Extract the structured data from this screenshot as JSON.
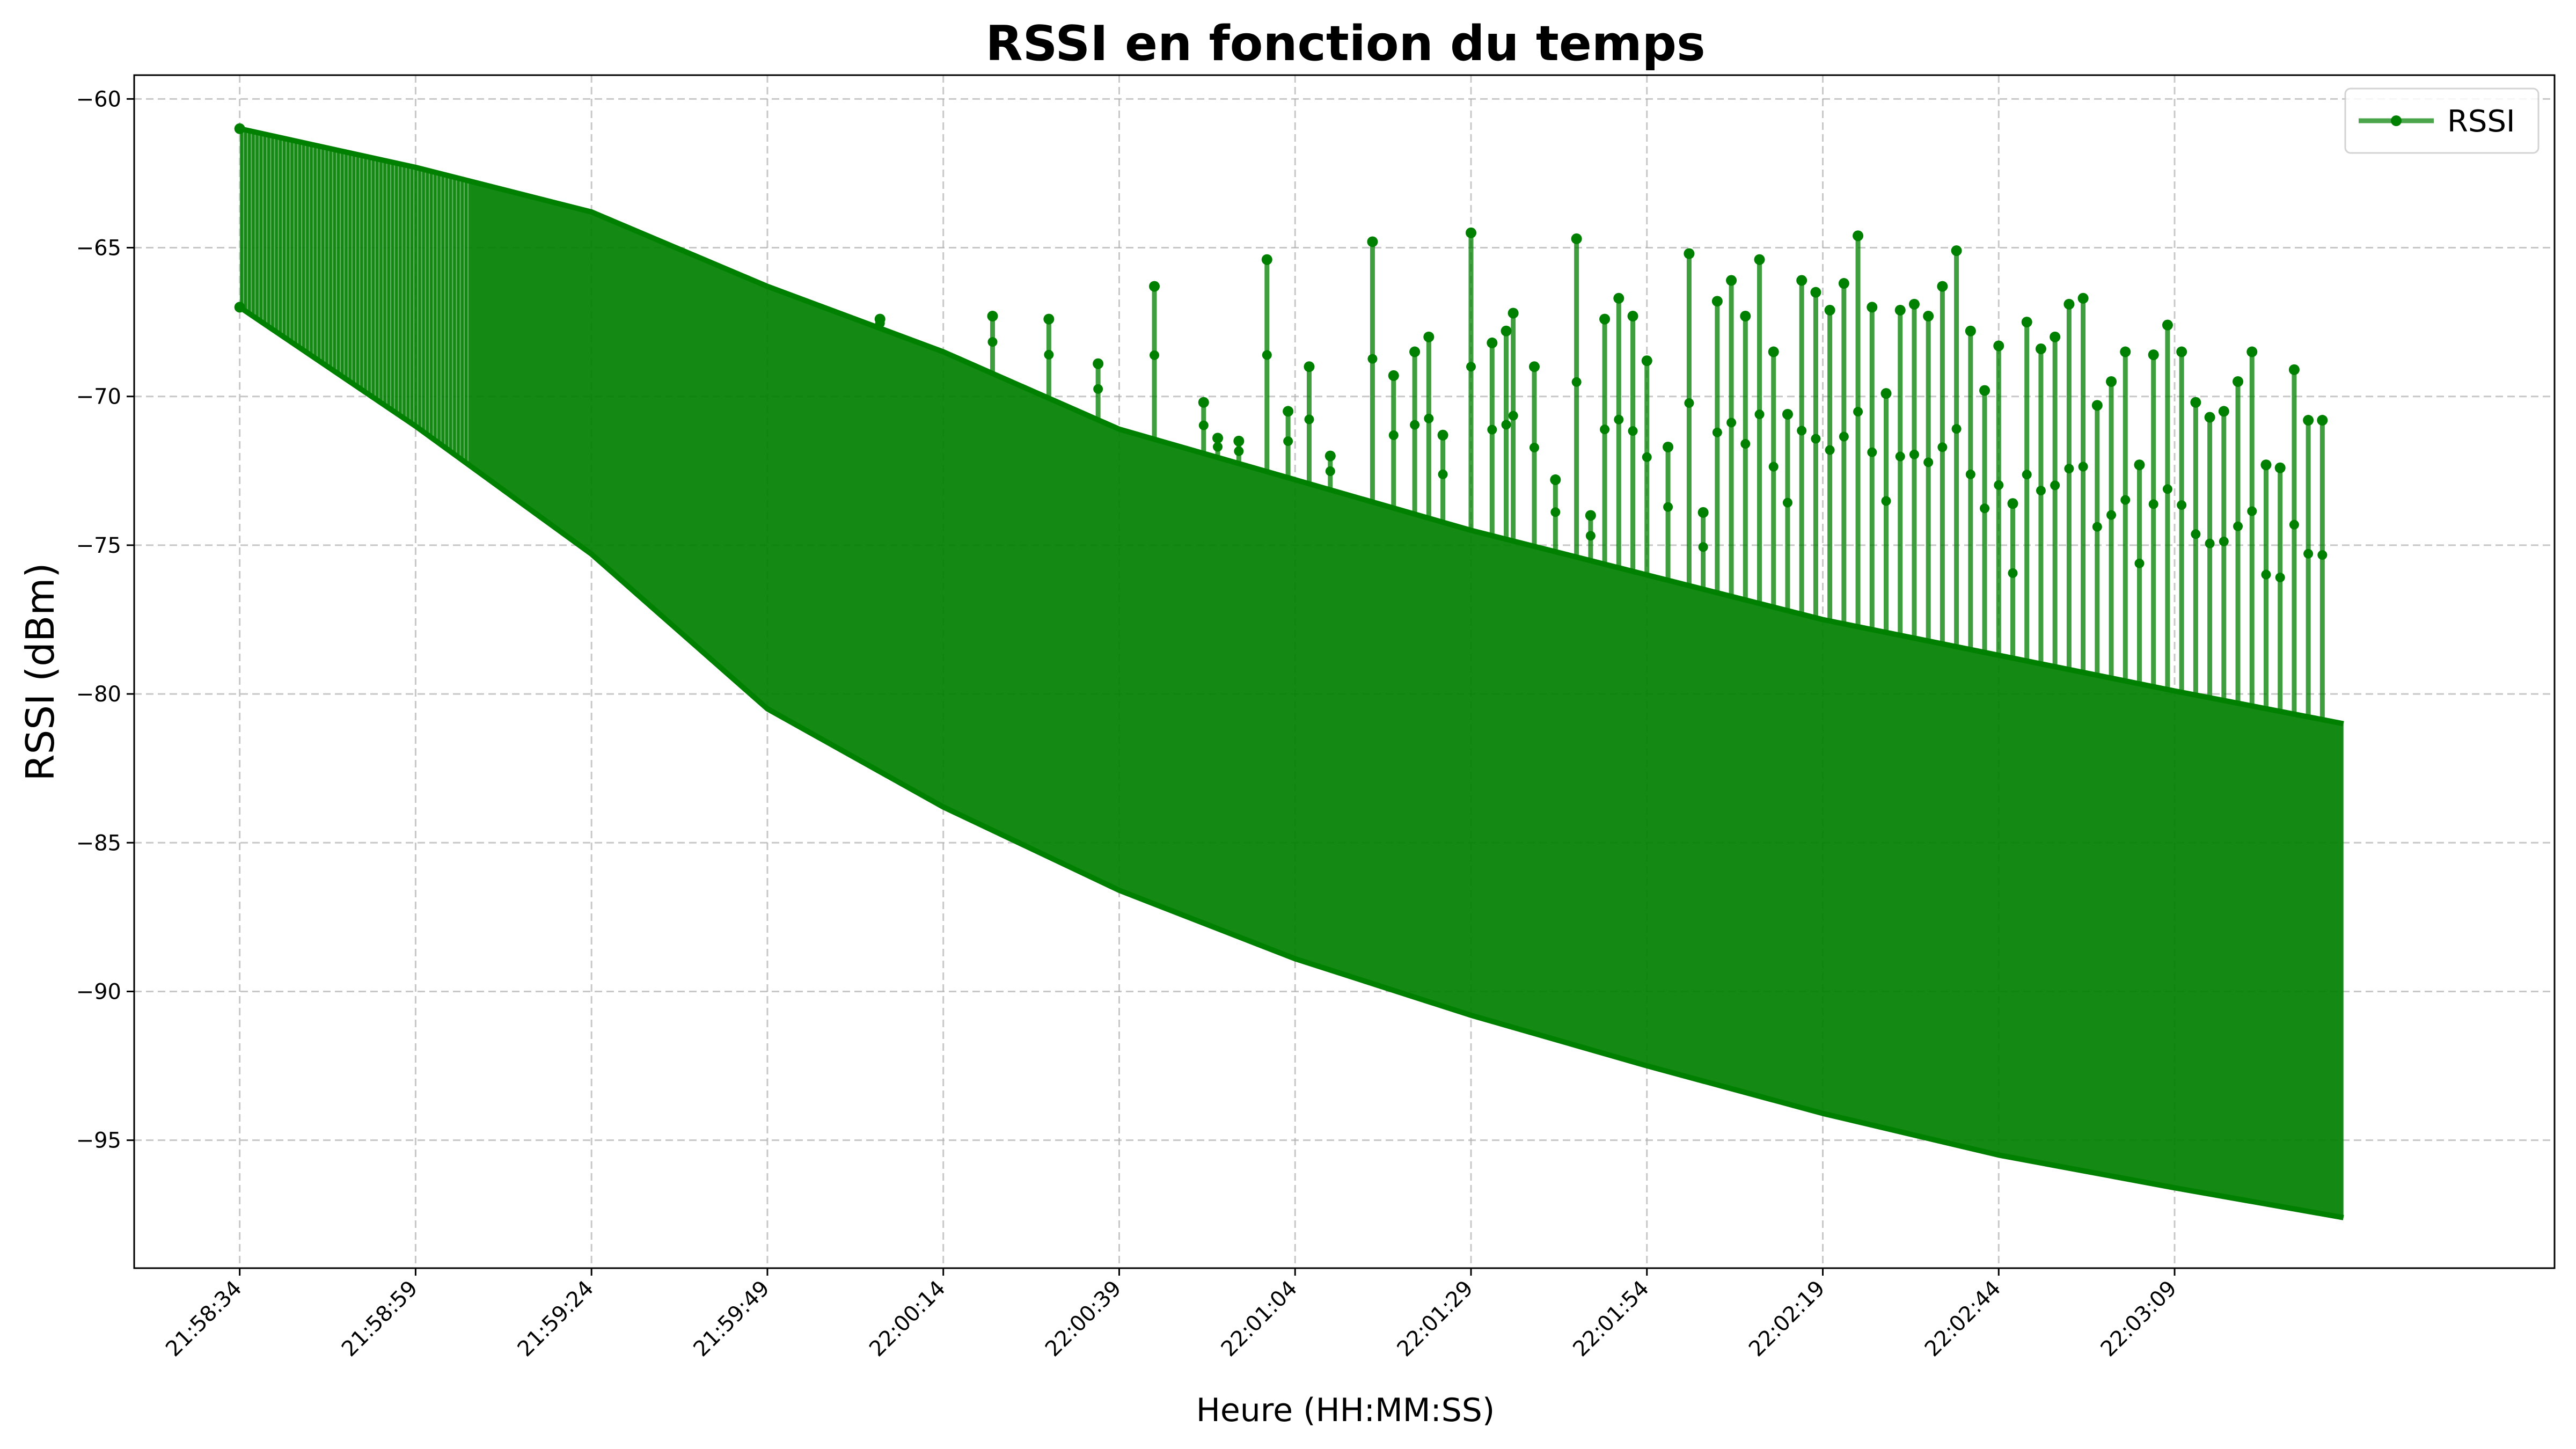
{
  "chart_data": {
    "type": "line",
    "title": "RSSI en fonction du temps",
    "xlabel": "Heure (HH:MM:SS)",
    "ylabel": "RSSI (dBm)",
    "x_ticks": [
      "21:58:34",
      "21:58:59",
      "21:59:24",
      "21:59:49",
      "22:00:14",
      "22:00:39",
      "22:01:04",
      "22:01:29",
      "22:01:54",
      "22:02:19",
      "22:02:44",
      "22:03:09"
    ],
    "x_range": [
      "21:58:19",
      "22:04:03"
    ],
    "y_ticks": [
      -60,
      -65,
      -70,
      -75,
      -80,
      -85,
      -90,
      -95
    ],
    "ylim": [
      -99.3,
      -59.2
    ],
    "grid": true,
    "legend_position": "top-right",
    "series": [
      {
        "name": "RSSI",
        "color": "#008000",
        "marker": "circle",
        "upper_envelope": [
          {
            "t": "21:58:34",
            "y": -61.0
          },
          {
            "t": "21:58:59",
            "y": -62.3
          },
          {
            "t": "21:59:24",
            "y": -63.8
          },
          {
            "t": "21:59:49",
            "y": -66.3
          },
          {
            "t": "22:00:14",
            "y": -68.5
          },
          {
            "t": "22:00:39",
            "y": -71.1
          },
          {
            "t": "22:01:04",
            "y": -72.8
          },
          {
            "t": "22:01:29",
            "y": -74.5
          },
          {
            "t": "22:01:54",
            "y": -76.0
          },
          {
            "t": "22:02:19",
            "y": -77.5
          },
          {
            "t": "22:02:44",
            "y": -78.7
          },
          {
            "t": "22:03:09",
            "y": -79.9
          },
          {
            "t": "22:03:33",
            "y": -81.0
          }
        ],
        "lower_envelope": [
          {
            "t": "21:58:34",
            "y": -67.0
          },
          {
            "t": "21:58:59",
            "y": -71.0
          },
          {
            "t": "21:59:24",
            "y": -75.3
          },
          {
            "t": "21:59:49",
            "y": -80.5
          },
          {
            "t": "22:00:14",
            "y": -83.8
          },
          {
            "t": "22:00:39",
            "y": -86.6
          },
          {
            "t": "22:01:04",
            "y": -88.9
          },
          {
            "t": "22:01:29",
            "y": -90.8
          },
          {
            "t": "22:01:54",
            "y": -92.5
          },
          {
            "t": "22:02:19",
            "y": -94.1
          },
          {
            "t": "22:02:44",
            "y": -95.5
          },
          {
            "t": "22:03:09",
            "y": -96.6
          },
          {
            "t": "22:03:33",
            "y": -97.6
          }
        ],
        "spikes": [
          {
            "t": "22:00:05",
            "y": -67.4
          },
          {
            "t": "22:00:21",
            "y": -67.3
          },
          {
            "t": "22:00:29",
            "y": -67.4
          },
          {
            "t": "22:00:36",
            "y": -68.9
          },
          {
            "t": "22:00:44",
            "y": -66.3
          },
          {
            "t": "22:00:51",
            "y": -70.2
          },
          {
            "t": "22:00:53",
            "y": -71.4
          },
          {
            "t": "22:00:56",
            "y": -71.5
          },
          {
            "t": "22:01:00",
            "y": -65.4
          },
          {
            "t": "22:01:03",
            "y": -70.5
          },
          {
            "t": "22:01:06",
            "y": -69.0
          },
          {
            "t": "22:01:09",
            "y": -72.0
          },
          {
            "t": "22:01:15",
            "y": -64.8
          },
          {
            "t": "22:01:18",
            "y": -69.3
          },
          {
            "t": "22:01:21",
            "y": -68.5
          },
          {
            "t": "22:01:23",
            "y": -68.0
          },
          {
            "t": "22:01:25",
            "y": -71.3
          },
          {
            "t": "22:01:29",
            "y": -64.5
          },
          {
            "t": "22:01:32",
            "y": -68.2
          },
          {
            "t": "22:01:34",
            "y": -67.8
          },
          {
            "t": "22:01:35",
            "y": -67.2
          },
          {
            "t": "22:01:38",
            "y": -69.0
          },
          {
            "t": "22:01:41",
            "y": -72.8
          },
          {
            "t": "22:01:44",
            "y": -64.7
          },
          {
            "t": "22:01:46",
            "y": -74.0
          },
          {
            "t": "22:01:48",
            "y": -67.4
          },
          {
            "t": "22:01:50",
            "y": -66.7
          },
          {
            "t": "22:01:52",
            "y": -67.3
          },
          {
            "t": "22:01:54",
            "y": -68.8
          },
          {
            "t": "22:01:57",
            "y": -71.7
          },
          {
            "t": "22:02:00",
            "y": -65.2
          },
          {
            "t": "22:02:02",
            "y": -73.9
          },
          {
            "t": "22:02:04",
            "y": -66.8
          },
          {
            "t": "22:02:06",
            "y": -66.1
          },
          {
            "t": "22:02:08",
            "y": -67.3
          },
          {
            "t": "22:02:10",
            "y": -65.4
          },
          {
            "t": "22:02:12",
            "y": -68.5
          },
          {
            "t": "22:02:14",
            "y": -70.6
          },
          {
            "t": "22:02:16",
            "y": -66.1
          },
          {
            "t": "22:02:18",
            "y": -66.5
          },
          {
            "t": "22:02:20",
            "y": -67.1
          },
          {
            "t": "22:02:22",
            "y": -66.2
          },
          {
            "t": "22:02:24",
            "y": -64.6
          },
          {
            "t": "22:02:26",
            "y": -67.0
          },
          {
            "t": "22:02:28",
            "y": -69.9
          },
          {
            "t": "22:02:30",
            "y": -67.1
          },
          {
            "t": "22:02:32",
            "y": -66.9
          },
          {
            "t": "22:02:34",
            "y": -67.3
          },
          {
            "t": "22:02:36",
            "y": -66.3
          },
          {
            "t": "22:02:38",
            "y": -65.1
          },
          {
            "t": "22:02:40",
            "y": -67.8
          },
          {
            "t": "22:02:42",
            "y": -69.8
          },
          {
            "t": "22:02:44",
            "y": -68.3
          },
          {
            "t": "22:02:46",
            "y": -73.6
          },
          {
            "t": "22:02:48",
            "y": -67.5
          },
          {
            "t": "22:02:50",
            "y": -68.4
          },
          {
            "t": "22:02:52",
            "y": -68.0
          },
          {
            "t": "22:02:54",
            "y": -66.9
          },
          {
            "t": "22:02:56",
            "y": -66.7
          },
          {
            "t": "22:02:58",
            "y": -70.3
          },
          {
            "t": "22:03:00",
            "y": -69.5
          },
          {
            "t": "22:03:02",
            "y": -68.5
          },
          {
            "t": "22:03:04",
            "y": -72.3
          },
          {
            "t": "22:03:06",
            "y": -68.6
          },
          {
            "t": "22:03:08",
            "y": -67.6
          },
          {
            "t": "22:03:10",
            "y": -68.5
          },
          {
            "t": "22:03:12",
            "y": -70.2
          },
          {
            "t": "22:03:14",
            "y": -70.7
          },
          {
            "t": "22:03:16",
            "y": -70.5
          },
          {
            "t": "22:03:18",
            "y": -69.5
          },
          {
            "t": "22:03:20",
            "y": -68.5
          },
          {
            "t": "22:03:22",
            "y": -72.3
          },
          {
            "t": "22:03:24",
            "y": -72.4
          },
          {
            "t": "22:03:26",
            "y": -69.1
          },
          {
            "t": "22:03:28",
            "y": -70.8
          },
          {
            "t": "22:03:30",
            "y": -70.8
          }
        ]
      }
    ]
  }
}
